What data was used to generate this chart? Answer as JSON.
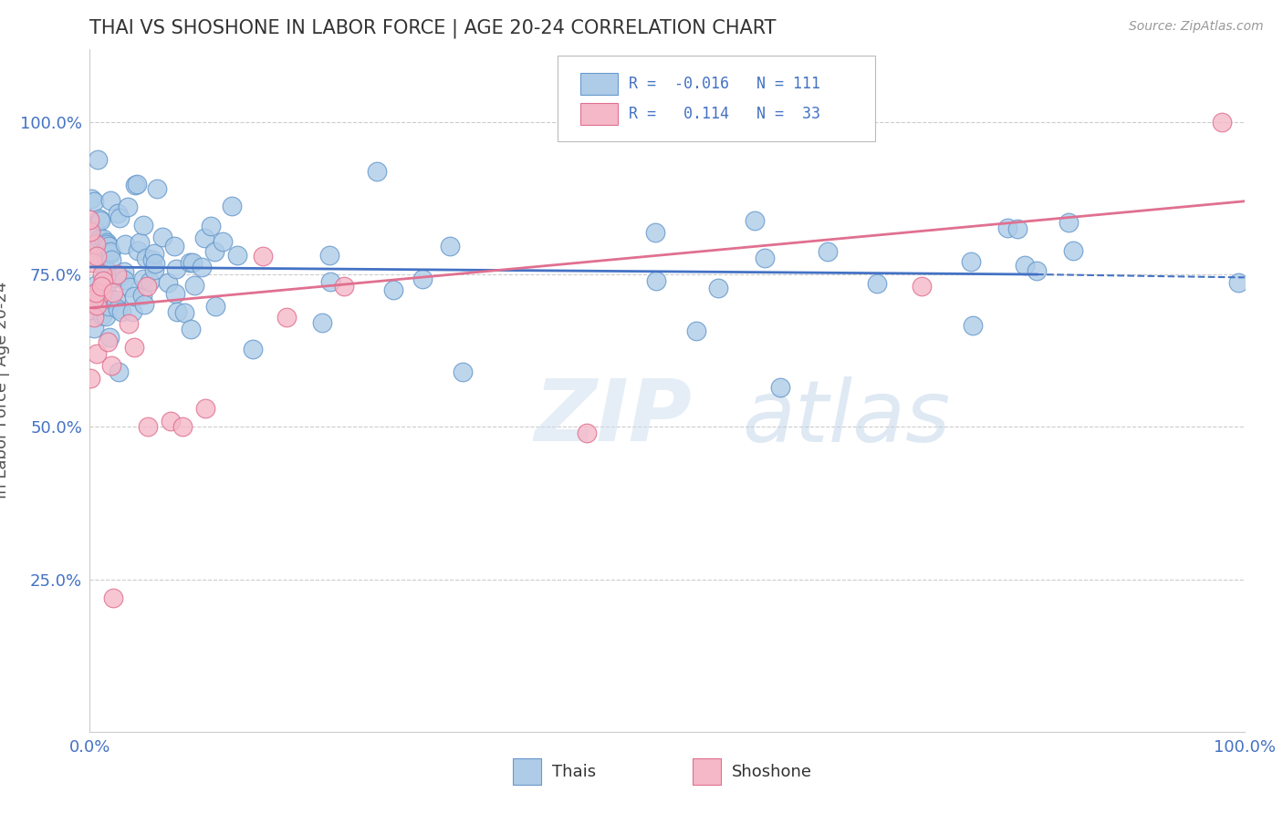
{
  "title": "THAI VS SHOSHONE IN LABOR FORCE | AGE 20-24 CORRELATION CHART",
  "source_text": "Source: ZipAtlas.com",
  "ylabel": "In Labor Force | Age 20-24",
  "xlim": [
    0.0,
    1.0
  ],
  "ylim": [
    0.0,
    1.12
  ],
  "bg_color": "#ffffff",
  "grid_color": "#cccccc",
  "watermark": "ZIPatlas",
  "thai_color": "#aecce8",
  "thai_edge_color": "#6699cc",
  "shoshone_color": "#f5b8c8",
  "shoshone_edge_color": "#e07090",
  "thai_R": -0.016,
  "thai_N": 111,
  "shoshone_R": 0.114,
  "shoshone_N": 33,
  "thai_line_color": "#4472c4",
  "shoshone_line_color": "#e07090",
  "legend_label_thai": "Thais",
  "legend_label_shoshone": "Shoshone",
  "thai_line_x0": 0.0,
  "thai_line_x1": 0.82,
  "thai_line_y0": 0.762,
  "thai_line_y1": 0.75,
  "thai_line_dash_x0": 0.82,
  "thai_line_dash_x1": 1.0,
  "thai_line_dash_y0": 0.75,
  "thai_line_dash_y1": 0.745,
  "shoshone_line_x0": 0.0,
  "shoshone_line_x1": 1.0,
  "shoshone_line_y0": 0.695,
  "shoshone_line_y1": 0.87
}
